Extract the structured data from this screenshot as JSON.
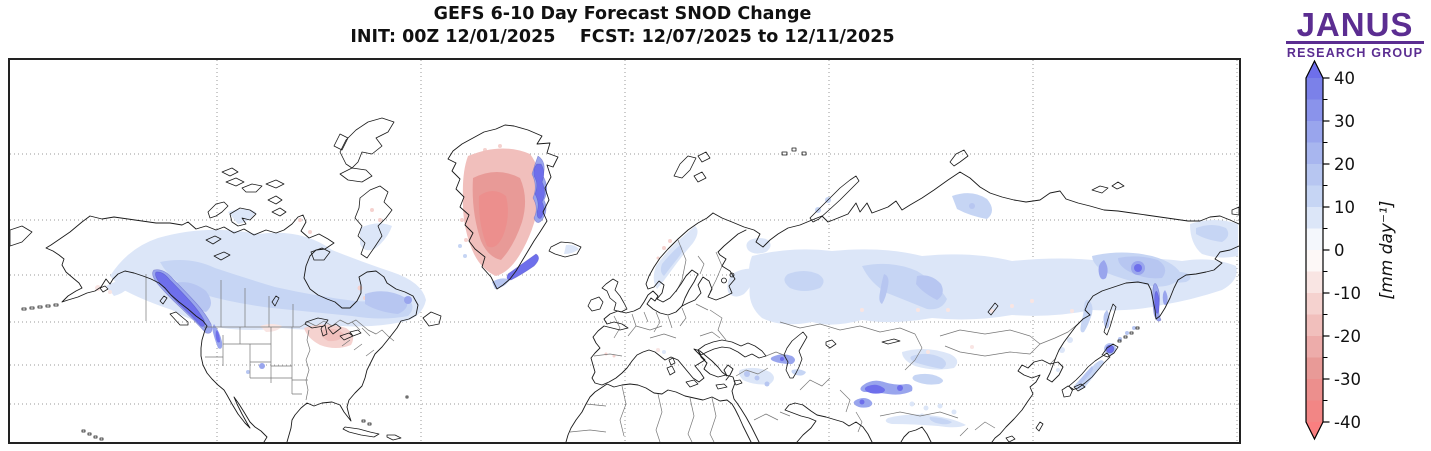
{
  "title": {
    "line1": "GEFS 6-10 Day Forecast SNOD Change",
    "line2": "INIT: 00Z 12/01/2025    FCST: 12/07/2025 to 12/11/2025"
  },
  "logo": {
    "text": "JANUS",
    "subtext": "RESEARCH GROUP",
    "color": "#5b2d91"
  },
  "colorbar": {
    "unit_label": "[mm day⁻¹]",
    "max": 40,
    "min": -40,
    "major_ticks": [
      40,
      30,
      20,
      10,
      0,
      -10,
      -20,
      -30,
      -40
    ],
    "minor_ticks": [
      35,
      25,
      15,
      5,
      -5,
      -15,
      -25,
      -35
    ],
    "over_color": "#6e6feb",
    "under_color": "#f97f80",
    "bands": [
      {
        "from": 35,
        "to": 40,
        "color": "#7b81e9"
      },
      {
        "from": 30,
        "to": 35,
        "color": "#8a93eb"
      },
      {
        "from": 25,
        "to": 30,
        "color": "#99a5ed"
      },
      {
        "from": 20,
        "to": 25,
        "color": "#a8b6ef"
      },
      {
        "from": 15,
        "to": 20,
        "color": "#b7c6f1"
      },
      {
        "from": 10,
        "to": 15,
        "color": "#c6d5f4"
      },
      {
        "from": 5,
        "to": 10,
        "color": "#dce6f8"
      },
      {
        "from": 0,
        "to": 5,
        "color": "#f4f7fc"
      },
      {
        "from": -5,
        "to": 0,
        "color": "#fdf8f7"
      },
      {
        "from": -10,
        "to": -5,
        "color": "#f9e5e3"
      },
      {
        "from": -15,
        "to": -10,
        "color": "#f5d2cf"
      },
      {
        "from": -20,
        "to": -15,
        "color": "#f1bfbc"
      },
      {
        "from": -25,
        "to": -20,
        "color": "#edacaa"
      },
      {
        "from": -30,
        "to": -25,
        "color": "#e89a97"
      },
      {
        "from": -35,
        "to": -30,
        "color": "#ec8f8d"
      },
      {
        "from": -40,
        "to": -35,
        "color": "#f28685"
      }
    ]
  },
  "chart_data": {
    "type": "heatmap",
    "title": "GEFS 6-10 Day Forecast SNOD Change",
    "init": "00Z 12/01/2025",
    "forecast_period": "12/07/2025 to 12/11/2025",
    "variable": "Snow depth (SNOD) change",
    "units": "mm day⁻¹",
    "projection": "Northern Hemisphere cylindrical map, ~180°W–180°E, ~20°N–85°N",
    "grid": "dotted graticule, ~60° longitude × ~10° latitude spacing",
    "legend_position": "right vertical colorbar with over/under arrows",
    "colorbar_range": [
      -40,
      40
    ],
    "colorbar_band_interval": 5,
    "regions": [
      {
        "region": "Central Greenland ice sheet",
        "approx_value_mm_day": -20
      },
      {
        "region": "Southwest Greenland interior core",
        "approx_value_mm_day": -30
      },
      {
        "region": "East / southeast Greenland coast",
        "approx_value_mm_day": 35
      },
      {
        "region": "British Columbia Coast Mountains",
        "approx_value_mm_day": 38
      },
      {
        "region": "Canadian boreal belt (Yukon to Labrador)",
        "approx_value_mm_day": 8
      },
      {
        "region": "Quebec / Labrador",
        "approx_value_mm_day": 15
      },
      {
        "region": "Northern US Rockies (Montana)",
        "approx_value_mm_day": 25
      },
      {
        "region": "US Midwest / Great Lakes",
        "approx_value_mm_day": -12
      },
      {
        "region": "Norwegian mountains",
        "approx_value_mm_day": 8
      },
      {
        "region": "Northwest Russia / West Siberia",
        "approx_value_mm_day": 12
      },
      {
        "region": "West Siberian core (near Urals)",
        "approx_value_mm_day": 17
      },
      {
        "region": "Northeast Siberia",
        "approx_value_mm_day": 18
      },
      {
        "region": "Northeast Siberia local maximum",
        "approx_value_mm_day": 40
      },
      {
        "region": "Taymyr / Putorana",
        "approx_value_mm_day": 12
      },
      {
        "region": "Caucasus",
        "approx_value_mm_day": 30
      },
      {
        "region": "Tian Shan / Pamir",
        "approx_value_mm_day": 40
      },
      {
        "region": "Altai",
        "approx_value_mm_day": 12
      },
      {
        "region": "Eastern Turkey / Zagros",
        "approx_value_mm_day": 17
      },
      {
        "region": "Himalayas",
        "approx_value_mm_day": 8
      },
      {
        "region": "Kamchatka",
        "approx_value_mm_day": 30
      },
      {
        "region": "Sakhalin",
        "approx_value_mm_day": 17
      },
      {
        "region": "Hokkaido",
        "approx_value_mm_day": 40
      },
      {
        "region": "Honshu west coast mountains",
        "approx_value_mm_day": 12
      },
      {
        "region": "Scattered central Siberia specks",
        "approx_value_mm_day": -7
      }
    ]
  }
}
